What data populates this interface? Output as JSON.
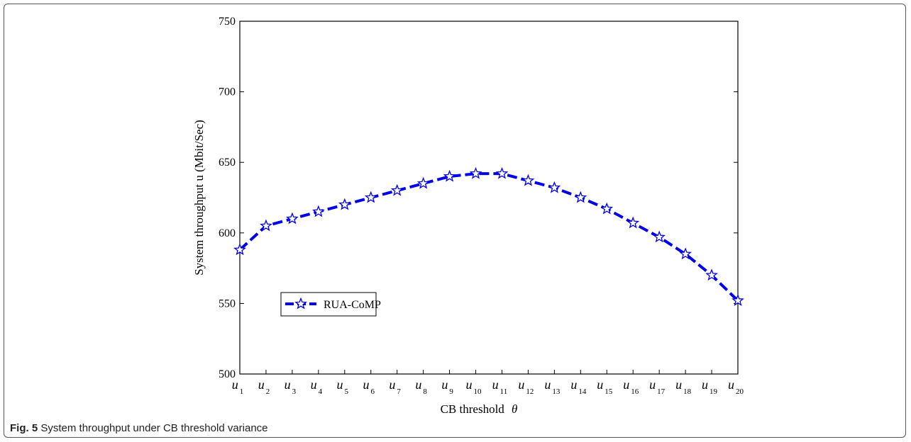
{
  "caption": {
    "label": "Fig. 5",
    "text": "System throughput under CB threshold variance"
  },
  "chart_data": {
    "type": "line",
    "xlabel": "CB threshold",
    "xlabel_symbol": "θ",
    "ylabel": "System throughput u (Mbit/Sec)",
    "ylim": [
      500,
      750
    ],
    "yticks": [
      500,
      550,
      600,
      650,
      700,
      750
    ],
    "x_tick_base": "u",
    "categories": [
      "1",
      "2",
      "3",
      "4",
      "5",
      "6",
      "7",
      "8",
      "9",
      "10",
      "11",
      "12",
      "13",
      "14",
      "15",
      "16",
      "17",
      "18",
      "19",
      "20"
    ],
    "series": [
      {
        "name": "RUA-CoMP",
        "color": "#0000ee",
        "marker": "star",
        "line_style": "dashed",
        "values": [
          588,
          605,
          610,
          615,
          620,
          625,
          630,
          635,
          640,
          642,
          642,
          637,
          632,
          625,
          617,
          607,
          597,
          585,
          570,
          552
        ]
      }
    ],
    "grid": false,
    "legend": "middle-left"
  }
}
